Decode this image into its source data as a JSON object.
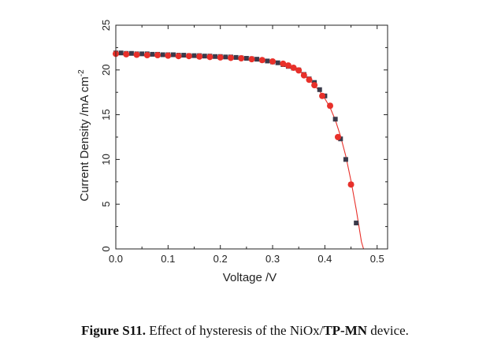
{
  "figure": {
    "caption_label": "Figure S11.",
    "caption_text_pre": " Effect of hysteresis of the NiOx/",
    "caption_bold_mid": "TP-MN",
    "caption_text_post": " device."
  },
  "chart_data": {
    "type": "scatter",
    "title": "",
    "xlabel": "Voltage /V",
    "ylabel": "Current Density /mA cm",
    "ylabel_superscript": "-2",
    "xlim": [
      0,
      0.52
    ],
    "ylim": [
      0,
      25
    ],
    "xticks": [
      0.0,
      0.1,
      0.2,
      0.3,
      0.4,
      0.5
    ],
    "xtick_labels": [
      "0.0",
      "0.1",
      "0.2",
      "0.3",
      "0.4",
      "0.5"
    ],
    "yticks": [
      0,
      5,
      10,
      15,
      20,
      25
    ],
    "ytick_labels": [
      "0",
      "5",
      "10",
      "15",
      "20",
      "25"
    ],
    "grid": false,
    "legend": "none",
    "series": [
      {
        "marker": "square",
        "color": "#3a3a4a",
        "points": [
          [
            0.0,
            21.9
          ],
          [
            0.01,
            21.9
          ],
          [
            0.02,
            21.85
          ],
          [
            0.03,
            21.85
          ],
          [
            0.04,
            21.8
          ],
          [
            0.05,
            21.8
          ],
          [
            0.06,
            21.8
          ],
          [
            0.07,
            21.75
          ],
          [
            0.08,
            21.75
          ],
          [
            0.09,
            21.7
          ],
          [
            0.1,
            21.7
          ],
          [
            0.11,
            21.7
          ],
          [
            0.12,
            21.65
          ],
          [
            0.13,
            21.65
          ],
          [
            0.14,
            21.6
          ],
          [
            0.15,
            21.6
          ],
          [
            0.16,
            21.6
          ],
          [
            0.17,
            21.55
          ],
          [
            0.18,
            21.55
          ],
          [
            0.19,
            21.5
          ],
          [
            0.2,
            21.5
          ],
          [
            0.21,
            21.45
          ],
          [
            0.22,
            21.45
          ],
          [
            0.23,
            21.4
          ],
          [
            0.24,
            21.35
          ],
          [
            0.25,
            21.3
          ],
          [
            0.26,
            21.25
          ],
          [
            0.27,
            21.2
          ],
          [
            0.28,
            21.1
          ],
          [
            0.29,
            21.0
          ],
          [
            0.3,
            20.9
          ],
          [
            0.31,
            20.8
          ],
          [
            0.32,
            20.6
          ],
          [
            0.33,
            20.4
          ],
          [
            0.34,
            20.2
          ],
          [
            0.35,
            20.0
          ],
          [
            0.36,
            19.5
          ],
          [
            0.37,
            19.0
          ],
          [
            0.38,
            18.6
          ],
          [
            0.39,
            17.8
          ],
          [
            0.4,
            17.1
          ],
          [
            0.41,
            16.0
          ],
          [
            0.42,
            14.5
          ],
          [
            0.43,
            12.3
          ],
          [
            0.44,
            10.0
          ],
          [
            0.45,
            7.2
          ],
          [
            0.46,
            2.9
          ]
        ]
      },
      {
        "marker": "circle",
        "color": "#e8302a",
        "points": [
          [
            0.0,
            21.8
          ],
          [
            0.02,
            21.75
          ],
          [
            0.04,
            21.7
          ],
          [
            0.06,
            21.65
          ],
          [
            0.08,
            21.65
          ],
          [
            0.1,
            21.6
          ],
          [
            0.12,
            21.55
          ],
          [
            0.14,
            21.55
          ],
          [
            0.16,
            21.5
          ],
          [
            0.18,
            21.45
          ],
          [
            0.2,
            21.4
          ],
          [
            0.22,
            21.35
          ],
          [
            0.24,
            21.3
          ],
          [
            0.26,
            21.2
          ],
          [
            0.28,
            21.1
          ],
          [
            0.3,
            20.95
          ],
          [
            0.32,
            20.7
          ],
          [
            0.33,
            20.5
          ],
          [
            0.34,
            20.25
          ],
          [
            0.35,
            19.95
          ],
          [
            0.36,
            19.4
          ],
          [
            0.37,
            18.9
          ],
          [
            0.38,
            18.3
          ],
          [
            0.395,
            17.1
          ],
          [
            0.41,
            16.0
          ],
          [
            0.425,
            12.5
          ],
          [
            0.45,
            7.2
          ]
        ]
      }
    ],
    "fit_curve": {
      "color": "#e8302a",
      "points": [
        [
          0.0,
          21.8
        ],
        [
          0.05,
          21.7
        ],
        [
          0.1,
          21.6
        ],
        [
          0.15,
          21.5
        ],
        [
          0.2,
          21.4
        ],
        [
          0.25,
          21.25
        ],
        [
          0.28,
          21.1
        ],
        [
          0.3,
          20.95
        ],
        [
          0.32,
          20.7
        ],
        [
          0.34,
          20.25
        ],
        [
          0.35,
          19.95
        ],
        [
          0.36,
          19.4
        ],
        [
          0.37,
          18.9
        ],
        [
          0.38,
          18.3
        ],
        [
          0.39,
          17.6
        ],
        [
          0.4,
          16.8
        ],
        [
          0.41,
          15.8
        ],
        [
          0.42,
          14.4
        ],
        [
          0.43,
          12.6
        ],
        [
          0.44,
          10.4
        ],
        [
          0.45,
          7.6
        ],
        [
          0.46,
          4.4
        ],
        [
          0.47,
          0.8
        ],
        [
          0.474,
          0.0
        ]
      ]
    }
  }
}
